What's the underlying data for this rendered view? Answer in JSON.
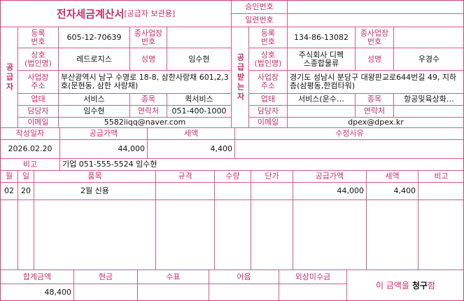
{
  "header": {
    "title": "전자세금계산서",
    "subtitle": "[공급자 보관용]",
    "approval_number": "승인번호",
    "serial_number": "일련번호"
  },
  "supplier": {
    "section": "공급자",
    "reg_no_label": "등록\n번호",
    "reg_no": "605-12-70639",
    "branch_label": "종사업장\n번호",
    "name_label": "상호\n(법인명)",
    "name": "레드로지스",
    "rep_label": "성명",
    "rep": "임수현",
    "address_label": "사업장\n주소",
    "address": "부산광역시 남구 수영로 18-8, 삼한사랑채 601,2,3호(문현동, 삼한 사랑채)",
    "type_label": "업태",
    "type": "서비스",
    "item_label": "종목",
    "item": "퀵서비스",
    "manager_label": "담당자",
    "manager": "임수현",
    "phone_label": "연락처",
    "phone": "051-400-1000",
    "email_label": "이메일",
    "email": "5582iiqq@naver.com"
  },
  "receiver": {
    "section": "공급받는자",
    "reg_no_label": "등록\n번호",
    "reg_no": "134-86-13082",
    "branch_label": "종사업장\n번호",
    "name_label": "상호\n(법인명)",
    "name": "주식회사 디펙\n스종합물류",
    "rep_label": "성명",
    "rep": "우경수",
    "address_label": "사업장\n주소",
    "address": "경기도 성남시 분당구 대왕판교로644번길 49, 지하층(삼평동,한컴타워)",
    "type_label": "업태",
    "type": "서비스(운수…",
    "item_label": "종목",
    "item": "항공및육상화…",
    "manager_label": "담당자",
    "phone_label": "연락처",
    "email_label": "이메일",
    "email": "dpex@dpex.kr"
  },
  "summary": {
    "date_label": "작성일자",
    "supply_label": "공급가액",
    "tax_label": "세액",
    "reason_label": "수정사유",
    "date": "2026.02.20",
    "supply": "44,000",
    "tax": "4,400"
  },
  "remark": {
    "label": "비고",
    "value": "기업 051-555-5524 임수현"
  },
  "items": {
    "headers": [
      "월",
      "일",
      "품목",
      "규격",
      "수량",
      "단가",
      "공급가액",
      "세액",
      "비고"
    ],
    "rows": [
      {
        "month": "02",
        "day": "20",
        "name": "2월 신용",
        "supply": "44,000",
        "tax": "4,400"
      }
    ]
  },
  "totals": {
    "headers": [
      "합계금액",
      "현금",
      "수표",
      "어음",
      "외상미수금"
    ],
    "total": "48,400",
    "claim_prefix": "이 금액을 ",
    "claim_word": "청구",
    "claim_suffix": "함"
  }
}
